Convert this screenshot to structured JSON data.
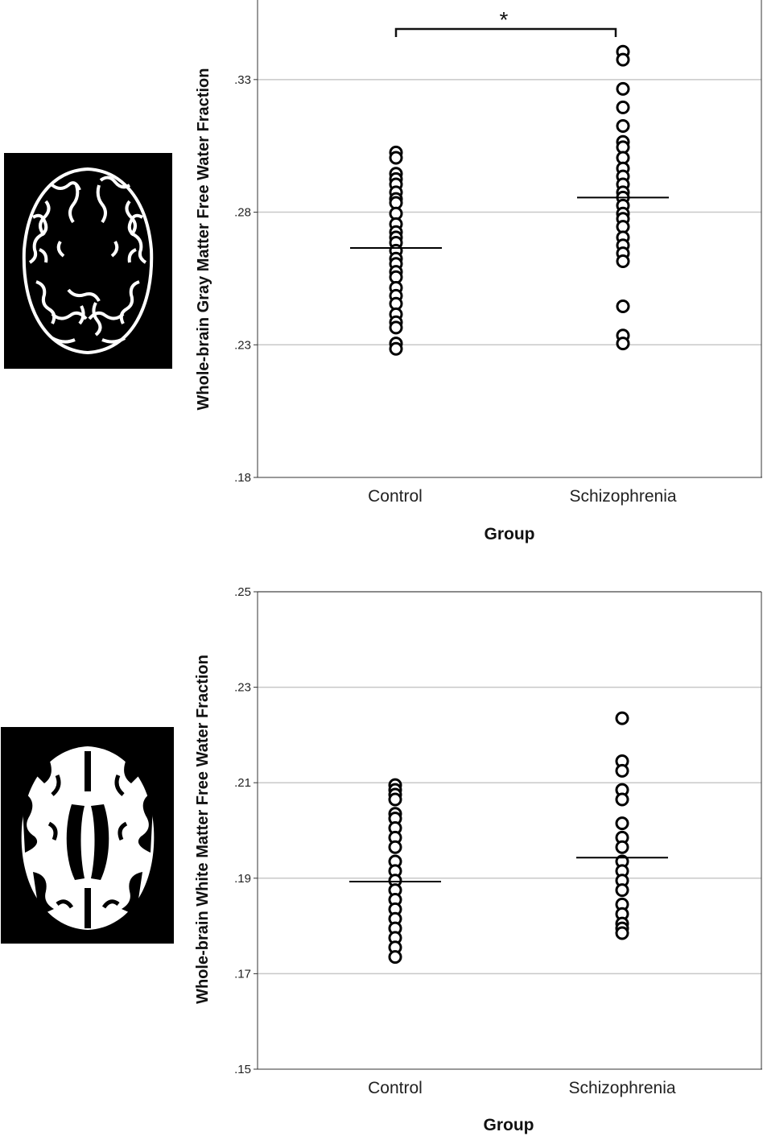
{
  "chart_data": [
    {
      "type": "scatter",
      "title": "",
      "xlabel": "Group",
      "ylabel": "Whole-brain Gray Matter Free Water Fraction",
      "categories": [
        "Control",
        "Schizophrenia"
      ],
      "ylim": [
        0.18,
        0.36
      ],
      "yticks": [
        ".18",
        ".23",
        ".28",
        ".33"
      ],
      "ytick_values": [
        0.18,
        0.23,
        0.28,
        0.33
      ],
      "grid": true,
      "series": [
        {
          "category": "Control",
          "values": [
            0.3025,
            0.3005,
            0.2945,
            0.2925,
            0.2905,
            0.2875,
            0.285,
            0.2835,
            0.2795,
            0.2755,
            0.2725,
            0.2705,
            0.2685,
            0.2655,
            0.2625,
            0.2605,
            0.2575,
            0.2555,
            0.2515,
            0.2485,
            0.2455,
            0.2415,
            0.2385,
            0.2365,
            0.2305,
            0.2285
          ],
          "mean": 0.2665
        },
        {
          "category": "Schizophrenia",
          "values": [
            0.3405,
            0.3375,
            0.3265,
            0.3195,
            0.3125,
            0.3065,
            0.3045,
            0.3005,
            0.2965,
            0.2935,
            0.2905,
            0.2875,
            0.2855,
            0.2825,
            0.2795,
            0.2775,
            0.2745,
            0.2705,
            0.2675,
            0.2645,
            0.2615,
            0.2445,
            0.2335,
            0.2305
          ],
          "mean": 0.2855
        }
      ],
      "annotation": "*"
    },
    {
      "type": "scatter",
      "title": "",
      "xlabel": "Group",
      "ylabel": "Whole-brain White Matter Free Water Fraction",
      "categories": [
        "Control",
        "Schizophrenia"
      ],
      "ylim": [
        0.15,
        0.25
      ],
      "yticks": [
        ".15",
        ".17",
        ".19",
        ".21",
        ".23",
        ".25"
      ],
      "ytick_values": [
        0.15,
        0.17,
        0.19,
        0.21,
        0.23,
        0.25
      ],
      "grid": true,
      "series": [
        {
          "category": "Control",
          "values": [
            0.2095,
            0.2085,
            0.2075,
            0.2065,
            0.2035,
            0.2025,
            0.2005,
            0.1985,
            0.1965,
            0.1935,
            0.1915,
            0.1895,
            0.1875,
            0.1855,
            0.1835,
            0.1815,
            0.1795,
            0.1775,
            0.1755,
            0.1735
          ],
          "mean": 0.1893
        },
        {
          "category": "Schizophrenia",
          "values": [
            0.2235,
            0.2145,
            0.2125,
            0.2085,
            0.2065,
            0.2015,
            0.1985,
            0.1965,
            0.1935,
            0.1915,
            0.1895,
            0.1875,
            0.1845,
            0.1825,
            0.1805,
            0.1795,
            0.1785
          ],
          "mean": 0.1943
        }
      ]
    }
  ]
}
